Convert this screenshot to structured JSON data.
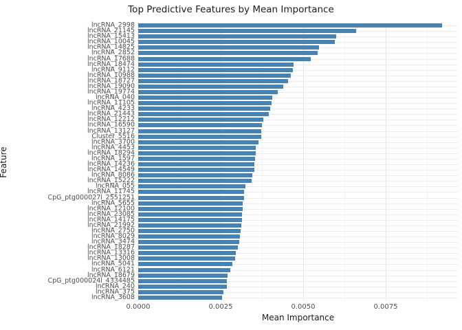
{
  "chart_data": {
    "type": "bar",
    "orientation": "horizontal",
    "title": "Top Predictive Features by Mean Importance",
    "xlabel": "Mean Importance",
    "ylabel": "Feature",
    "xlim": [
      0,
      0.009687
    ],
    "x_tick_values": [
      0,
      0.0025,
      0.005,
      0.0075
    ],
    "x_tick_labels": [
      "0.0000",
      "0.0025",
      "0.0050",
      "0.0075"
    ],
    "x_minor_tick_values": [
      0.00125,
      0.00375,
      0.00625,
      0.00875
    ],
    "grid": true,
    "legend": false,
    "bar_color": "#4682B4",
    "panel_background": "#ffffff",
    "gridline_color": "#ebebeb",
    "categories": [
      "lncRNA_2998",
      "lncRNA_21145",
      "lncRNA_15413",
      "lncRNA_10045",
      "lncRNA_14825",
      "lncRNA_2852",
      "lncRNA_17688",
      "lncRNA_18474",
      "lncRNA_9112",
      "lncRNA_10988",
      "lncRNA_18727",
      "lncRNA_19090",
      "lncRNA_19774",
      "lncRNA_040",
      "lncRNA_11105",
      "lncRNA_4233",
      "lncRNA_21443",
      "lncRNA_12212",
      "lncRNA_16590",
      "lncRNA_13127",
      "Cluster_5516",
      "lncRNA_3700",
      "lncRNA_4453",
      "lncRNA_18294",
      "lncRNA_1597",
      "lncRNA_14236",
      "lncRNA_14549",
      "lncRNA_8086",
      "lncRNA_15222",
      "lncRNA_055",
      "lncRNA_11745",
      "CpG_ptg000027l_2551251",
      "lncRNA_5655",
      "lncRNA_12100",
      "lncRNA_23085",
      "lncRNA_14175",
      "lncRNA_21992",
      "lncRNA_2750",
      "lncRNA_8029",
      "lncRNA_3474",
      "lncRNA_18287",
      "lncRNA_13316",
      "lncRNA_13008",
      "lncRNA_5041",
      "lncRNA_6121",
      "lncRNA_18679",
      "CpG_ptg000024l_4334485",
      "lncRNA_240",
      "lncRNA_375",
      "lncRNA_3608"
    ],
    "values": [
      0.0092,
      0.0066,
      0.00601,
      0.00596,
      0.00548,
      0.00544,
      0.00522,
      0.0047,
      0.00468,
      0.00462,
      0.00455,
      0.0044,
      0.00422,
      0.00406,
      0.00405,
      0.004,
      0.00396,
      0.0038,
      0.00374,
      0.00373,
      0.00372,
      0.00365,
      0.00357,
      0.00356,
      0.00354,
      0.00353,
      0.00352,
      0.00346,
      0.00343,
      0.00324,
      0.00321,
      0.0032,
      0.00317,
      0.00316,
      0.00315,
      0.00314,
      0.00313,
      0.00311,
      0.00309,
      0.00306,
      0.00302,
      0.00296,
      0.00293,
      0.00286,
      0.00279,
      0.00271,
      0.00269,
      0.00268,
      0.00258,
      0.00254
    ]
  }
}
